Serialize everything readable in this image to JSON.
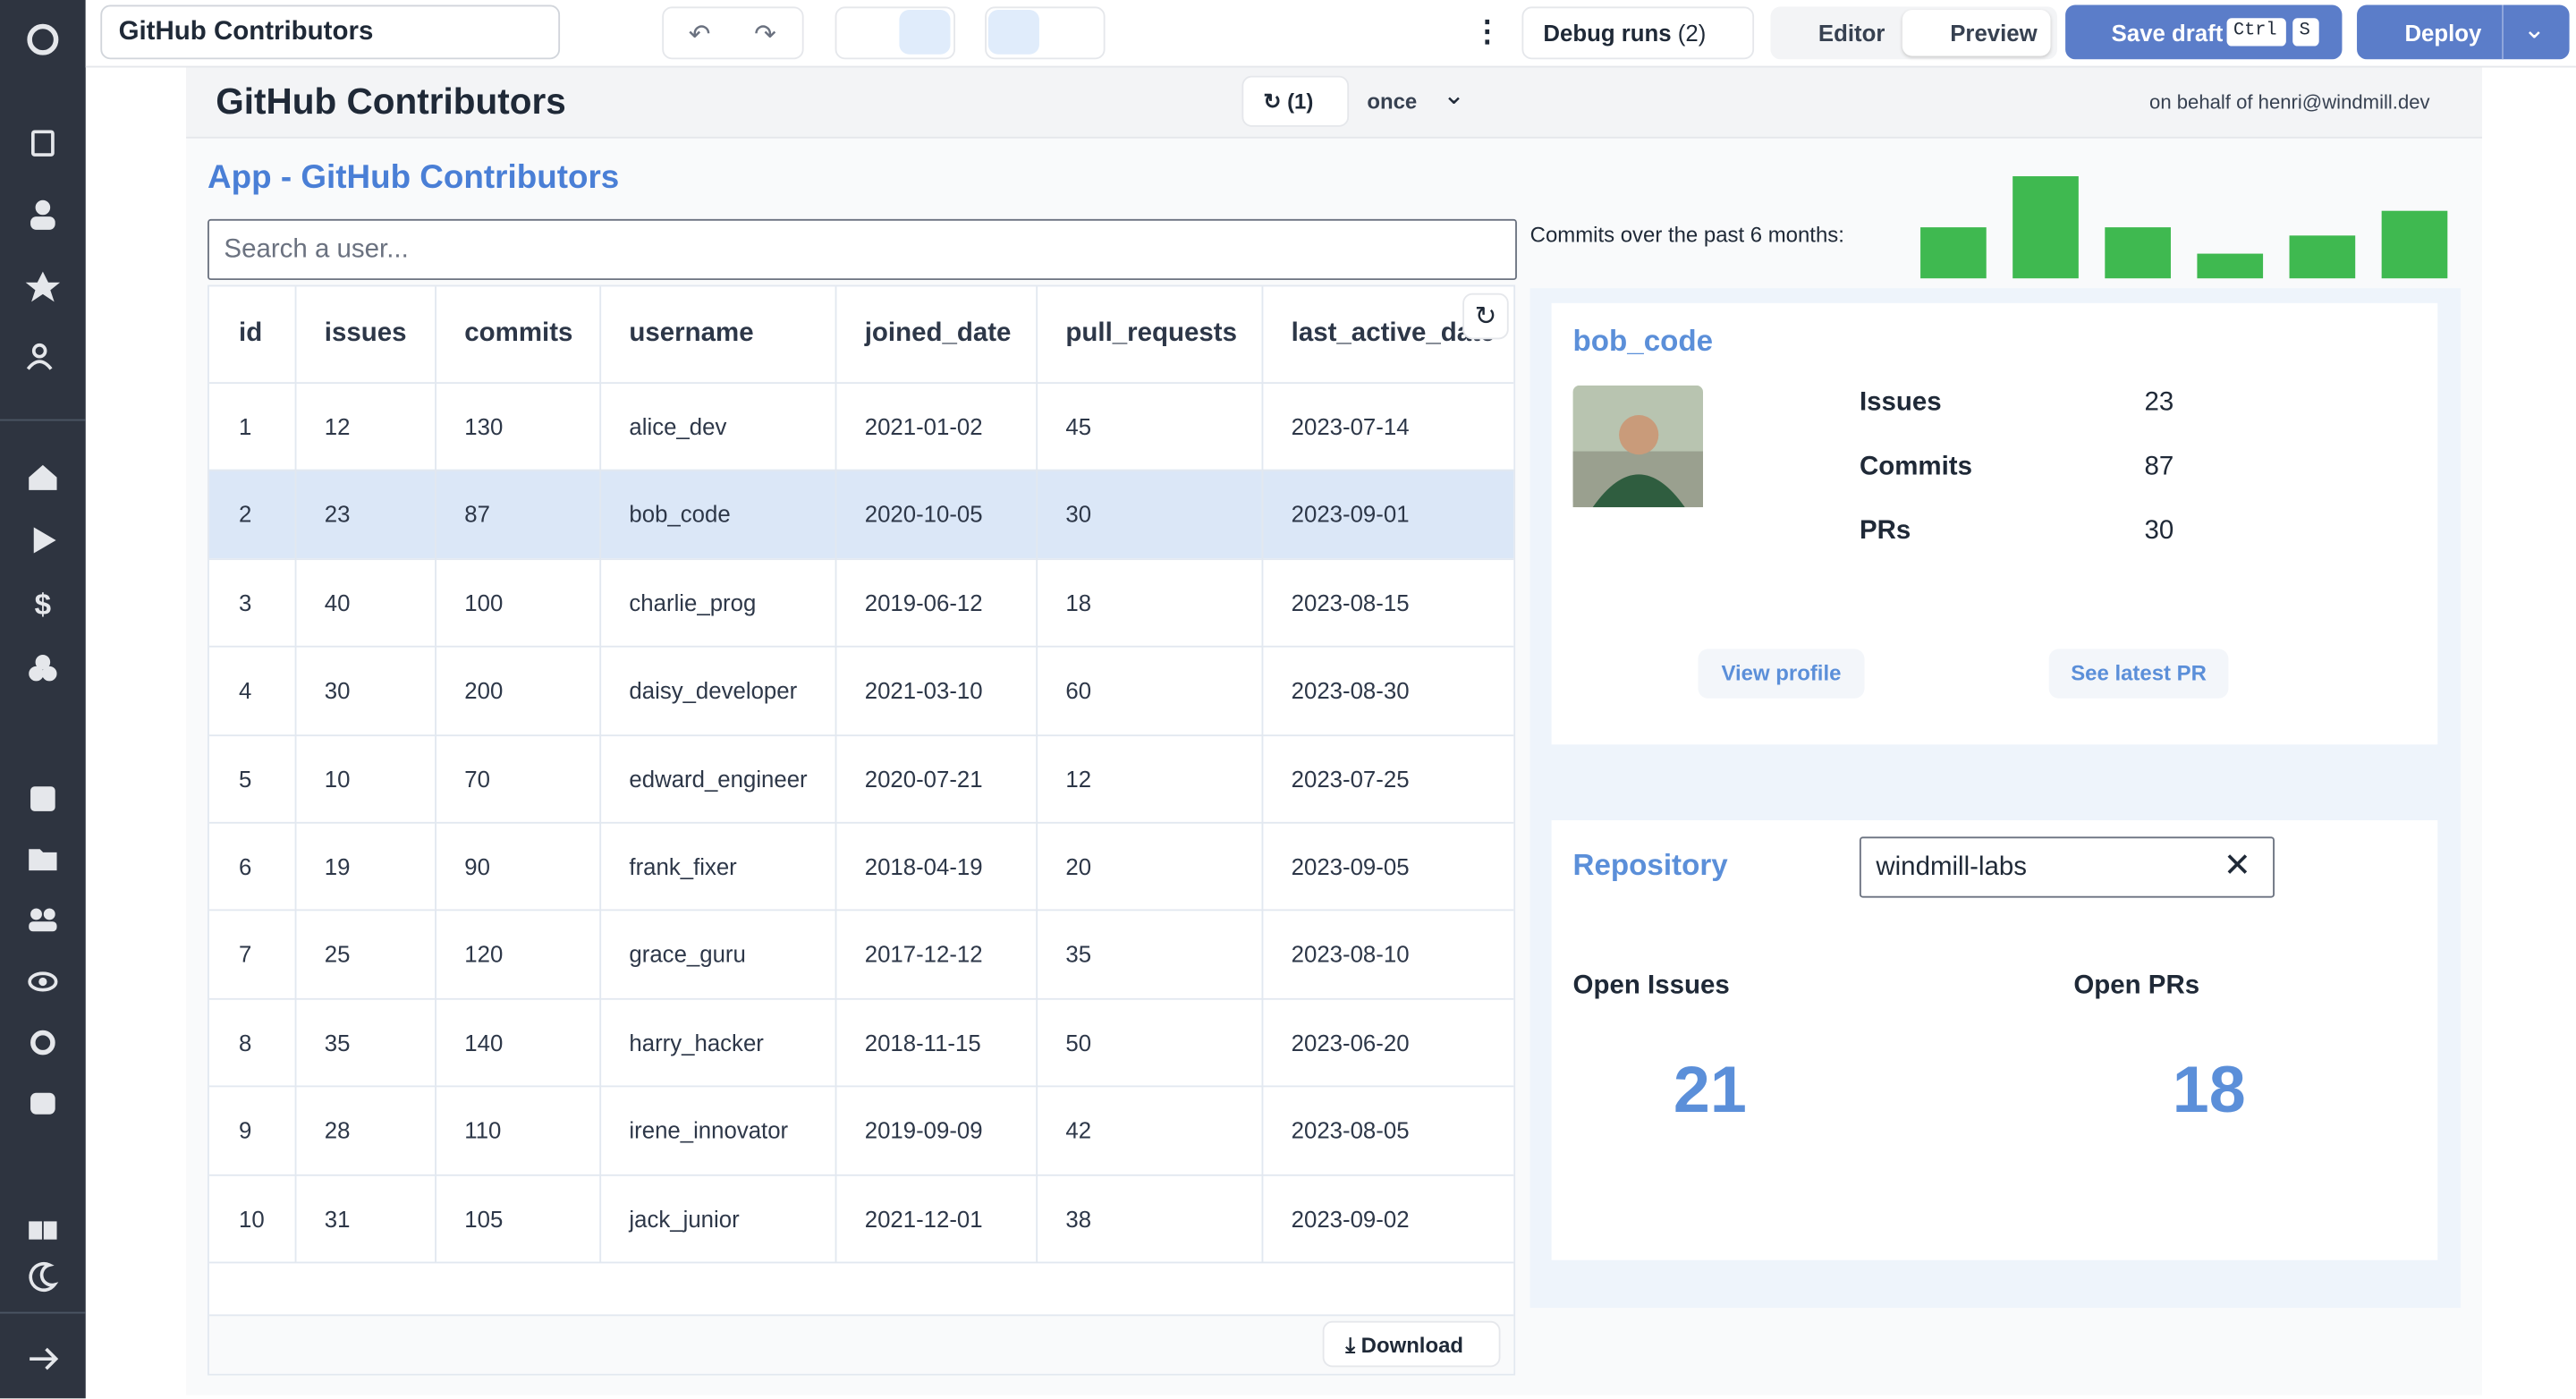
{
  "toolbar": {
    "app_name": "GitHub Contributors",
    "debug_runs": "Debug runs",
    "debug_count": "(2)",
    "editor": "Editor",
    "preview": "Preview",
    "save_draft": "Save draft",
    "shortcut": [
      "Ctrl",
      "S"
    ],
    "deploy": "Deploy"
  },
  "header": {
    "title": "GitHub Contributors",
    "refresh_count": "(1)",
    "refresh_mode": "once",
    "behalf": "on behalf of henri@windmill.dev"
  },
  "app": {
    "title": "App - GitHub Contributors",
    "search_placeholder": "Search a user...",
    "table": {
      "columns": [
        "id",
        "issues",
        "commits",
        "username",
        "joined_date",
        "pull_requests",
        "last_active_date"
      ],
      "rows": [
        [
          1,
          12,
          130,
          "alice_dev",
          "2021-01-02",
          45,
          "2023-07-14"
        ],
        [
          2,
          23,
          87,
          "bob_code",
          "2020-10-05",
          30,
          "2023-09-01"
        ],
        [
          3,
          40,
          100,
          "charlie_prog",
          "2019-06-12",
          18,
          "2023-08-15"
        ],
        [
          4,
          30,
          200,
          "daisy_developer",
          "2021-03-10",
          60,
          "2023-08-30"
        ],
        [
          5,
          10,
          70,
          "edward_engineer",
          "2020-07-21",
          12,
          "2023-07-25"
        ],
        [
          6,
          19,
          90,
          "frank_fixer",
          "2018-04-19",
          20,
          "2023-09-05"
        ],
        [
          7,
          25,
          120,
          "grace_guru",
          "2017-12-12",
          35,
          "2023-08-10"
        ],
        [
          8,
          35,
          140,
          "harry_hacker",
          "2018-11-15",
          50,
          "2023-06-20"
        ],
        [
          9,
          28,
          110,
          "irene_innovator",
          "2019-09-09",
          42,
          "2023-08-05"
        ],
        [
          10,
          31,
          105,
          "jack_junior",
          "2021-12-01",
          38,
          "2023-09-02"
        ]
      ],
      "selected_row": 1
    },
    "download": "Download"
  },
  "commits_chart": {
    "label": "Commits over the past 6 months:",
    "values": [
      31,
      62,
      31,
      15,
      26,
      41
    ],
    "color": "#3fb950"
  },
  "profile": {
    "username": "bob_code",
    "stats": [
      {
        "label": "Issues",
        "value": 23
      },
      {
        "label": "Commits",
        "value": 87
      },
      {
        "label": "PRs",
        "value": 30
      }
    ],
    "view_profile": "View profile",
    "latest_pr": "See latest PR"
  },
  "repository": {
    "label": "Repository",
    "value": "windmill-labs",
    "open_issues": {
      "label": "Open Issues",
      "value": 21
    },
    "open_prs": {
      "label": "Open PRs",
      "value": 18
    }
  }
}
